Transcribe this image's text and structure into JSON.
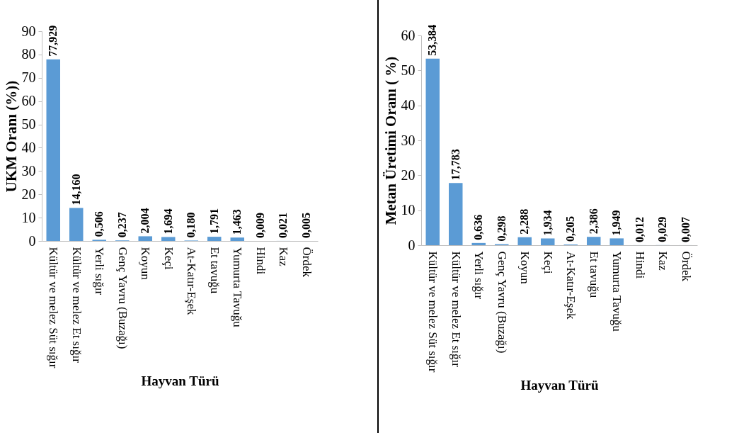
{
  "chart_data": [
    {
      "type": "bar",
      "xlabel": "Hayvan Türü",
      "ylabel": "UKM Oranı (%))",
      "categories": [
        "Kültür ve melez Süt sığır",
        "Kültür ve melez Et sığır",
        "Yerli sığır",
        "Genç Yavru (Buzağı)",
        "Koyun",
        "Keçi",
        "At-Katır-Eşek",
        "Et tavuğu",
        "Yumurta Tavuğu",
        "Hindi",
        "Kaz",
        "Ördek"
      ],
      "values": [
        77.929,
        14.16,
        0.506,
        0.237,
        2.004,
        1.694,
        0.18,
        1.791,
        1.463,
        0.009,
        0.021,
        0.005
      ],
      "value_labels": [
        "77,929",
        "14,160",
        "0,506",
        "0,237",
        "2,004",
        "1,694",
        "0,180",
        "1,791",
        "1,463",
        "0,009",
        "0,021",
        "0,005"
      ],
      "color": "#5b9bd5",
      "ylim": [
        0,
        90
      ],
      "yticks": [
        0,
        10,
        20,
        30,
        40,
        50,
        60,
        70,
        80,
        90
      ],
      "grid": false
    },
    {
      "type": "bar",
      "xlabel": "Hayvan Türü",
      "ylabel": "Metan Üretimi Oranı ( %)",
      "categories": [
        "Kültür ve melez Süt sığır",
        "Kültür ve melez Et sığır",
        "Yerli sığır",
        "Genç Yavru (Buzağı)",
        "Koyun",
        "Keçi",
        "At-Katır-Eşek",
        "Et tavuğu",
        "Yumurta Tavuğu",
        "Hindi",
        "Kaz",
        "Ördek"
      ],
      "values": [
        53.384,
        17.783,
        0.636,
        0.298,
        2.288,
        1.934,
        0.205,
        2.386,
        1.949,
        0.012,
        0.029,
        0.007
      ],
      "value_labels": [
        "53,384",
        "17,783",
        "0,636",
        "0,298",
        "2,288",
        "1,934",
        "0,205",
        "2,386",
        "1,949",
        "0,012",
        "0,029",
        "0,007"
      ],
      "color": "#5b9bd5",
      "ylim": [
        0,
        60
      ],
      "yticks": [
        0,
        10,
        20,
        30,
        40,
        50,
        60
      ],
      "grid": false
    }
  ]
}
